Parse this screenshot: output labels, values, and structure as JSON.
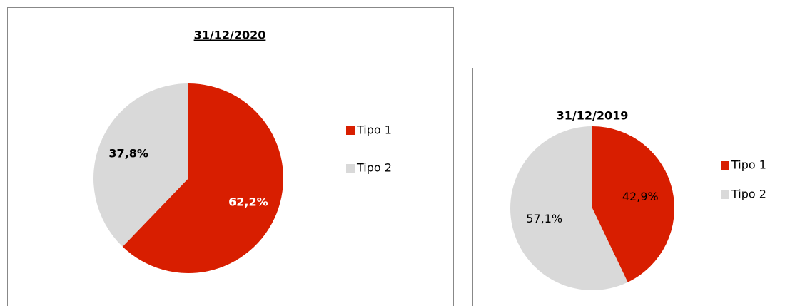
{
  "chart_data": [
    {
      "type": "pie",
      "title": "31/12/2020",
      "title_underline": true,
      "categories": [
        "Tipo 1",
        "Tipo 2"
      ],
      "values": [
        62.2,
        37.8
      ],
      "value_labels": [
        "62,2%",
        "37,8%"
      ],
      "colors": [
        "#d81e00",
        "#d9d9d9"
      ],
      "label_colors": [
        "#ffffff",
        "#000000"
      ],
      "label_bold": true,
      "legend": "right"
    },
    {
      "type": "pie",
      "title": "31/12/2019",
      "title_underline": false,
      "categories": [
        "Tipo 1",
        "Tipo 2"
      ],
      "values": [
        42.9,
        57.1
      ],
      "value_labels": [
        "42,9%",
        "57,1%"
      ],
      "colors": [
        "#d81e00",
        "#d9d9d9"
      ],
      "label_colors": [
        "#000000",
        "#000000"
      ],
      "label_bold": false,
      "legend": "right"
    }
  ]
}
